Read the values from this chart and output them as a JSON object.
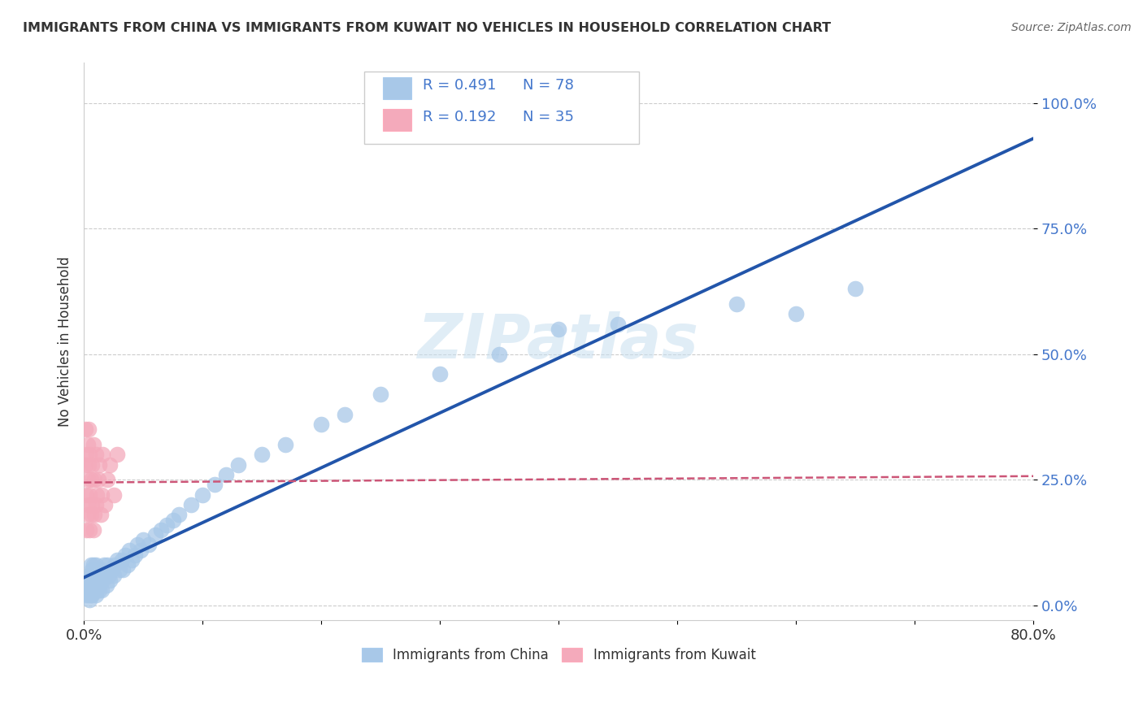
{
  "title": "IMMIGRANTS FROM CHINA VS IMMIGRANTS FROM KUWAIT NO VEHICLES IN HOUSEHOLD CORRELATION CHART",
  "source": "Source: ZipAtlas.com",
  "ylabel": "No Vehicles in Household",
  "ytick_labels": [
    "0.0%",
    "25.0%",
    "50.0%",
    "75.0%",
    "100.0%"
  ],
  "ytick_values": [
    0.0,
    0.25,
    0.5,
    0.75,
    1.0
  ],
  "xmin": 0.0,
  "xmax": 0.8,
  "ymin": -0.03,
  "ymax": 1.08,
  "china_color": "#A8C8E8",
  "kuwait_color": "#F4AABB",
  "china_line_color": "#2255AA",
  "kuwait_line_color": "#CC5577",
  "watermark": "ZIPatlas",
  "china_R": 0.491,
  "china_N": 78,
  "kuwait_R": 0.192,
  "kuwait_N": 35,
  "legend_text_color": "#4477CC",
  "china_scatter_x": [
    0.002,
    0.003,
    0.003,
    0.004,
    0.004,
    0.004,
    0.005,
    0.005,
    0.005,
    0.006,
    0.006,
    0.006,
    0.006,
    0.007,
    0.007,
    0.007,
    0.008,
    0.008,
    0.008,
    0.009,
    0.009,
    0.01,
    0.01,
    0.01,
    0.011,
    0.011,
    0.012,
    0.012,
    0.013,
    0.013,
    0.014,
    0.015,
    0.015,
    0.016,
    0.017,
    0.018,
    0.019,
    0.02,
    0.021,
    0.022,
    0.023,
    0.025,
    0.026,
    0.028,
    0.03,
    0.032,
    0.033,
    0.035,
    0.037,
    0.038,
    0.04,
    0.043,
    0.045,
    0.048,
    0.05,
    0.055,
    0.06,
    0.065,
    0.07,
    0.075,
    0.08,
    0.09,
    0.1,
    0.11,
    0.12,
    0.13,
    0.15,
    0.17,
    0.2,
    0.22,
    0.25,
    0.3,
    0.35,
    0.4,
    0.45,
    0.55,
    0.6,
    0.65
  ],
  "china_scatter_y": [
    0.02,
    0.03,
    0.05,
    0.02,
    0.04,
    0.06,
    0.01,
    0.03,
    0.05,
    0.02,
    0.04,
    0.06,
    0.08,
    0.02,
    0.04,
    0.07,
    0.03,
    0.05,
    0.08,
    0.03,
    0.06,
    0.02,
    0.05,
    0.08,
    0.03,
    0.06,
    0.04,
    0.07,
    0.03,
    0.06,
    0.05,
    0.03,
    0.07,
    0.05,
    0.08,
    0.06,
    0.04,
    0.08,
    0.06,
    0.05,
    0.07,
    0.06,
    0.08,
    0.09,
    0.07,
    0.09,
    0.07,
    0.1,
    0.08,
    0.11,
    0.09,
    0.1,
    0.12,
    0.11,
    0.13,
    0.12,
    0.14,
    0.15,
    0.16,
    0.17,
    0.18,
    0.2,
    0.22,
    0.24,
    0.26,
    0.28,
    0.3,
    0.32,
    0.36,
    0.38,
    0.42,
    0.46,
    0.5,
    0.55,
    0.56,
    0.6,
    0.58,
    0.63
  ],
  "kuwait_scatter_x": [
    0.001,
    0.001,
    0.002,
    0.002,
    0.002,
    0.003,
    0.003,
    0.003,
    0.004,
    0.004,
    0.004,
    0.005,
    0.005,
    0.005,
    0.006,
    0.006,
    0.007,
    0.007,
    0.008,
    0.008,
    0.009,
    0.009,
    0.01,
    0.01,
    0.011,
    0.012,
    0.013,
    0.014,
    0.015,
    0.016,
    0.018,
    0.02,
    0.022,
    0.025,
    0.028
  ],
  "kuwait_scatter_y": [
    0.35,
    0.28,
    0.22,
    0.3,
    0.15,
    0.25,
    0.18,
    0.32,
    0.2,
    0.28,
    0.35,
    0.15,
    0.22,
    0.3,
    0.18,
    0.25,
    0.2,
    0.28,
    0.15,
    0.32,
    0.18,
    0.25,
    0.2,
    0.3,
    0.22,
    0.25,
    0.28,
    0.18,
    0.22,
    0.3,
    0.2,
    0.25,
    0.28,
    0.22,
    0.3
  ]
}
